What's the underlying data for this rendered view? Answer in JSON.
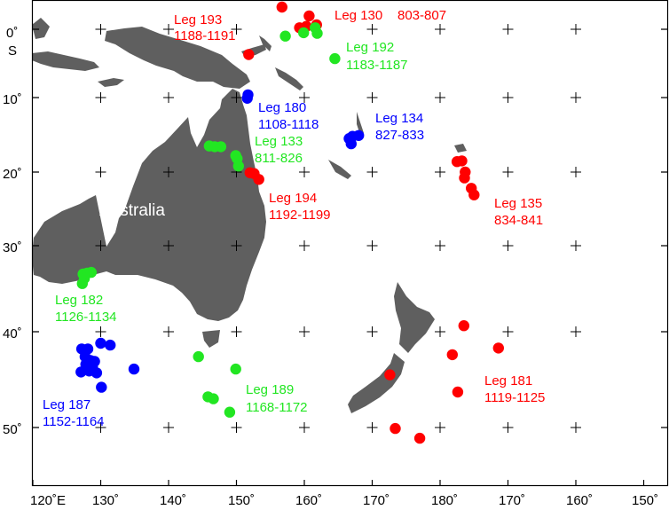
{
  "colors": {
    "land": "#5f5f5f",
    "red": "#ff0000",
    "green": "#22e622",
    "blue": "#0000ff",
    "frame": "#000000",
    "grid_cross": "#000000"
  },
  "map": {
    "country_label": "Australia",
    "lat_unit_label": "S"
  },
  "chart_data": {
    "type": "scatter",
    "projection": "mercator-like",
    "xlim": [
      120,
      210
    ],
    "ylim": [
      -56,
      3
    ],
    "x_ticks": [
      {
        "lon": 120,
        "label": "120˚E"
      },
      {
        "lon": 130,
        "label": "130˚"
      },
      {
        "lon": 140,
        "label": "140˚"
      },
      {
        "lon": 150,
        "label": "150˚"
      },
      {
        "lon": 160,
        "label": "160˚"
      },
      {
        "lon": 170,
        "label": "170˚"
      },
      {
        "lon": 180,
        "label": "180˚"
      },
      {
        "lon": 190,
        "label": "170˚"
      },
      {
        "lon": 200,
        "label": "160˚"
      },
      {
        "lon": 210,
        "label": "150˚"
      }
    ],
    "y_ticks": [
      {
        "lat": 0,
        "label": "0˚"
      },
      {
        "lat": -10,
        "label": "10˚"
      },
      {
        "lat": -20,
        "label": "20˚"
      },
      {
        "lat": -30,
        "label": "30˚"
      },
      {
        "lat": -40,
        "label": "40˚"
      },
      {
        "lat": -50,
        "label": "50˚"
      }
    ],
    "grid": "crosses",
    "legs": [
      {
        "name": "Leg 193",
        "sites": "1188-1191",
        "color": "red",
        "points": [
          [
            151.8,
            -3.7
          ]
        ]
      },
      {
        "name": "Leg 130",
        "sites": "803-807",
        "color": "red",
        "points": [
          [
            156.7,
            3.0
          ],
          [
            160.7,
            1.8
          ],
          [
            160.3,
            0.4
          ],
          [
            159.3,
            0.2
          ],
          [
            161.8,
            0.6
          ]
        ]
      },
      {
        "name": "Leg 192",
        "sites": "1183-1187",
        "color": "green",
        "points": [
          [
            157.2,
            -1.0
          ],
          [
            159.9,
            -0.5
          ],
          [
            161.6,
            0.2
          ],
          [
            161.9,
            -0.6
          ],
          [
            164.5,
            -4.3
          ]
        ]
      },
      {
        "name": "Leg 180",
        "sites": "1108-1118",
        "color": "blue",
        "points": [
          [
            151.7,
            -9.6
          ],
          [
            151.6,
            -10.1
          ]
        ]
      },
      {
        "name": "Leg 134",
        "sites": "827-833",
        "color": "blue",
        "points": [
          [
            166.6,
            -15.5
          ],
          [
            167.1,
            -15.2
          ],
          [
            168.0,
            -15.1
          ],
          [
            166.9,
            -16.2
          ]
        ]
      },
      {
        "name": "Leg 133",
        "sites": "811-826",
        "color": "green",
        "points": [
          [
            146.0,
            -16.5
          ],
          [
            146.8,
            -16.6
          ],
          [
            147.7,
            -16.6
          ],
          [
            149.9,
            -17.8
          ],
          [
            150.1,
            -18.2
          ],
          [
            150.3,
            -19.2
          ]
        ]
      },
      {
        "name": "Leg 194",
        "sites": "1192-1199",
        "color": "red",
        "points": [
          [
            152.0,
            -20.1
          ],
          [
            152.6,
            -20.2
          ],
          [
            153.3,
            -21.0
          ]
        ]
      },
      {
        "name": "Leg 135",
        "sites": "834-841",
        "color": "red",
        "points": [
          [
            182.5,
            -18.6
          ],
          [
            183.2,
            -18.5
          ],
          [
            183.7,
            -20.0
          ],
          [
            183.6,
            -20.8
          ],
          [
            184.6,
            -22.2
          ],
          [
            185.0,
            -23.1
          ]
        ]
      },
      {
        "name": "Leg 182",
        "sites": "1126-1134",
        "color": "green",
        "points": [
          [
            127.4,
            -33.3
          ],
          [
            128.0,
            -33.2
          ],
          [
            128.6,
            -33.1
          ],
          [
            127.6,
            -33.8
          ],
          [
            127.3,
            -34.4
          ]
        ]
      },
      {
        "name": "Leg 187",
        "sites": "1152-1164",
        "color": "blue",
        "points": [
          [
            127.2,
            -41.8
          ],
          [
            128.1,
            -41.8
          ],
          [
            130.0,
            -41.2
          ],
          [
            131.4,
            -41.4
          ],
          [
            127.7,
            -42.6
          ],
          [
            128.5,
            -43.0
          ],
          [
            129.1,
            -43.1
          ],
          [
            127.8,
            -43.4
          ],
          [
            128.8,
            -43.7
          ],
          [
            127.1,
            -44.2
          ],
          [
            128.3,
            -44.1
          ],
          [
            129.4,
            -44.3
          ],
          [
            130.1,
            -45.8
          ],
          [
            134.9,
            -43.9
          ]
        ]
      },
      {
        "name": "Leg 189",
        "sites": "1168-1172",
        "color": "green",
        "points": [
          [
            144.4,
            -42.6
          ],
          [
            149.9,
            -43.9
          ],
          [
            145.8,
            -46.8
          ],
          [
            146.6,
            -47.0
          ],
          [
            149.0,
            -48.4
          ]
        ]
      },
      {
        "name": "Leg 181",
        "sites": "1119-1125",
        "color": "red",
        "points": [
          [
            183.5,
            -39.3
          ],
          [
            181.8,
            -42.4
          ],
          [
            188.6,
            -41.7
          ],
          [
            172.6,
            -44.5
          ],
          [
            182.6,
            -46.3
          ],
          [
            173.4,
            -50.1
          ],
          [
            177.0,
            -51.1
          ]
        ]
      }
    ]
  }
}
